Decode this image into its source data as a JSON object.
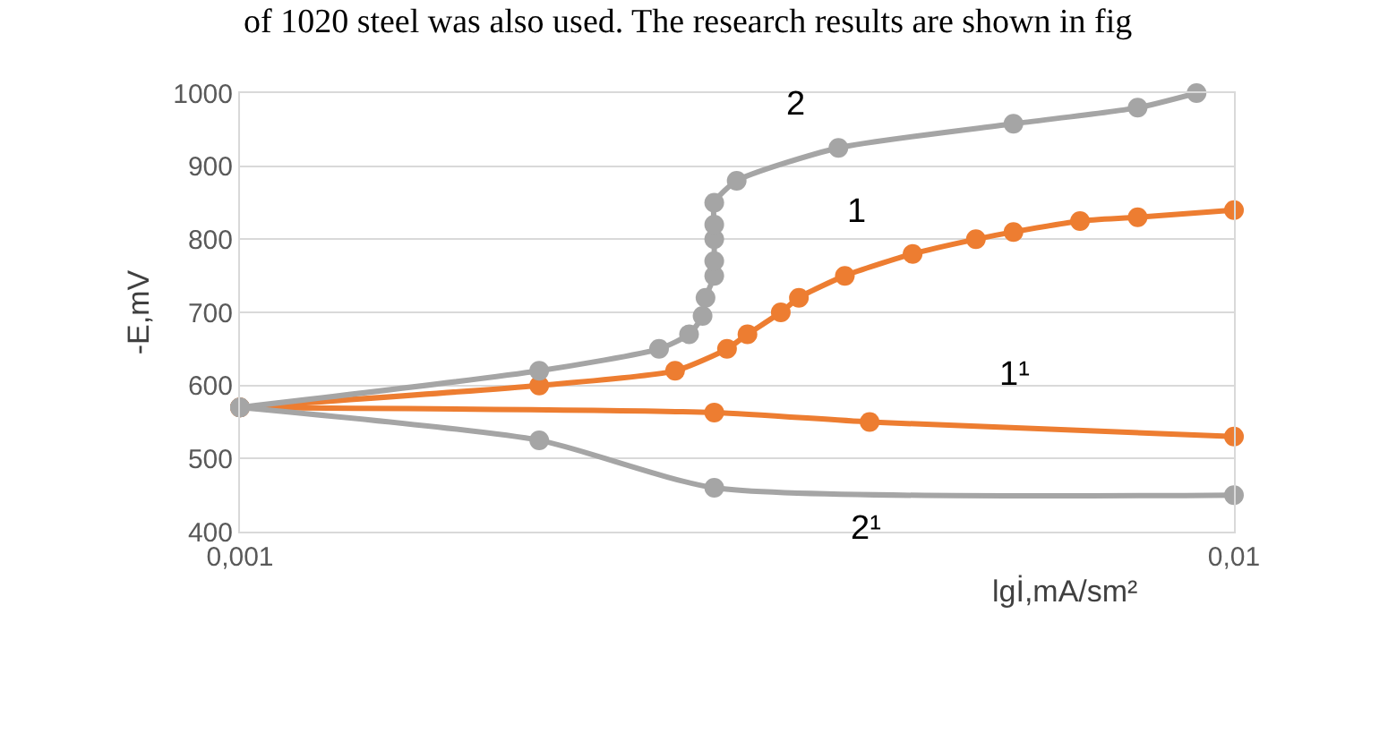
{
  "chart_data": {
    "type": "line",
    "ylabel": "-E,mV",
    "xlabel": "lgİ,mA/sm²",
    "log": "x",
    "xlim": [
      0.001,
      0.01
    ],
    "xticks": [
      {
        "value": 0.001,
        "label": "0,001"
      },
      {
        "value": 0.01,
        "label": "0,01"
      }
    ],
    "ylim": [
      400,
      1000
    ],
    "yticks": [
      400,
      500,
      600,
      700,
      800,
      900,
      1000
    ],
    "grid": "y",
    "legend": false,
    "marker": "circle",
    "line_style": "solid",
    "annotations": [
      "of 1020 steel was also used. The research results are shown in fig"
    ],
    "series": [
      {
        "name": "1",
        "color": "#ed7d31",
        "x": [
          0.001,
          0.002,
          0.00274,
          0.00309,
          0.00324,
          0.0035,
          0.00365,
          0.00406,
          0.00475,
          0.0055,
          0.006,
          0.007,
          0.008,
          0.01
        ],
        "values": [
          570,
          600,
          620,
          650,
          670,
          700,
          720,
          750,
          780,
          800,
          810,
          825,
          830,
          840
        ]
      },
      {
        "name": "1¹",
        "color": "#ed7d31",
        "x": [
          0.001,
          0.003,
          0.0043,
          0.01
        ],
        "values": [
          570,
          563,
          550,
          530
        ]
      },
      {
        "name": "2",
        "color": "#a5a5a5",
        "x": [
          0.001,
          0.002,
          0.00264,
          0.00283,
          0.00292,
          0.00294,
          0.003,
          0.003,
          0.003,
          0.003,
          0.003,
          0.00316,
          0.004,
          0.006,
          0.008,
          0.00917
        ],
        "values": [
          570,
          620,
          650,
          670,
          695,
          720,
          750,
          770,
          800,
          820,
          850,
          880,
          925,
          958,
          980,
          1000
        ]
      },
      {
        "name": "2¹",
        "color": "#a5a5a5",
        "x": [
          0.001,
          0.002,
          0.003,
          0.01
        ],
        "values": [
          570,
          525,
          460,
          450
        ]
      }
    ]
  }
}
